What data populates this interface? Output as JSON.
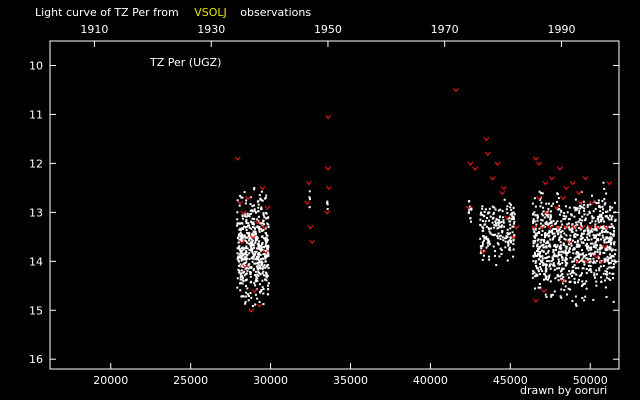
{
  "title": {
    "prefix": "Light curve of TZ Per from",
    "source": "VSOLJ",
    "suffix": "observations",
    "source_color": "#e8e800"
  },
  "credit": {
    "text": "drawn by ooruri",
    "color": "#20b0c0"
  },
  "chart_data": {
    "type": "scatter",
    "subtitle": "TZ Per (UGZ)",
    "xlim": [
      16200,
      51800
    ],
    "ylim": [
      16.2,
      9.5
    ],
    "y_inverted": true,
    "x_ticks": [
      20000,
      25000,
      30000,
      35000,
      40000,
      45000,
      50000
    ],
    "x_ticks_top": [
      {
        "label": "1910",
        "jd": 18980
      },
      {
        "label": "1930",
        "jd": 26290
      },
      {
        "label": "1950",
        "jd": 33590
      },
      {
        "label": "1970",
        "jd": 40890
      },
      {
        "label": "1990",
        "jd": 48200
      }
    ],
    "y_ticks": [
      10,
      11,
      12,
      13,
      14,
      15,
      16
    ],
    "series": [
      {
        "color": "#ffffff",
        "marker": "dot",
        "clusters": [
          {
            "x": [
              27900,
              29900
            ],
            "y": [
              12.3,
              15.2
            ],
            "count": 520
          },
          {
            "x": [
              32400,
              32500
            ],
            "y": [
              12.5,
              13.0
            ],
            "count": 4
          },
          {
            "x": [
              33500,
              33600
            ],
            "y": [
              12.6,
              13.0
            ],
            "count": 4
          },
          {
            "x": [
              42400,
              42600
            ],
            "y": [
              12.6,
              13.3
            ],
            "count": 14
          },
          {
            "x": [
              43100,
              45300
            ],
            "y": [
              12.4,
              14.2
            ],
            "count": 190
          },
          {
            "x": [
              46400,
              51600
            ],
            "y": [
              12.2,
              15.1
            ],
            "count": 900
          }
        ]
      },
      {
        "color": "#e01818",
        "marker": "v",
        "points": [
          [
            27950,
            11.9
          ],
          [
            28100,
            12.8
          ],
          [
            28300,
            13.0
          ],
          [
            28600,
            12.7
          ],
          [
            28900,
            13.5
          ],
          [
            29200,
            13.2
          ],
          [
            29500,
            12.5
          ],
          [
            29700,
            13.8
          ],
          [
            28400,
            14.1
          ],
          [
            29000,
            14.6
          ],
          [
            28800,
            15.0
          ],
          [
            29300,
            14.9
          ],
          [
            28200,
            13.6
          ],
          [
            29600,
            13.3
          ],
          [
            29800,
            12.9
          ],
          [
            32400,
            12.4
          ],
          [
            32500,
            13.3
          ],
          [
            32600,
            13.6
          ],
          [
            32300,
            12.8
          ],
          [
            33600,
            11.05
          ],
          [
            33600,
            12.1
          ],
          [
            33650,
            12.5
          ],
          [
            33550,
            13.0
          ],
          [
            41600,
            10.5
          ],
          [
            42500,
            12.0
          ],
          [
            42800,
            12.1
          ],
          [
            42400,
            12.9
          ],
          [
            43500,
            11.5
          ],
          [
            43600,
            11.8
          ],
          [
            43900,
            12.3
          ],
          [
            44200,
            12.0
          ],
          [
            44500,
            12.6
          ],
          [
            44800,
            13.1
          ],
          [
            43300,
            13.8
          ],
          [
            45400,
            13.3
          ],
          [
            45200,
            13.5
          ],
          [
            44600,
            12.5
          ],
          [
            46600,
            11.9
          ],
          [
            46800,
            12.0
          ],
          [
            47200,
            12.4
          ],
          [
            47600,
            12.3
          ],
          [
            48100,
            12.1
          ],
          [
            48500,
            12.5
          ],
          [
            48900,
            12.4
          ],
          [
            49300,
            12.6
          ],
          [
            49700,
            12.3
          ],
          [
            50100,
            12.8
          ],
          [
            46500,
            13.3
          ],
          [
            47000,
            13.3
          ],
          [
            47500,
            13.3
          ],
          [
            48000,
            13.3
          ],
          [
            48500,
            13.3
          ],
          [
            49000,
            13.3
          ],
          [
            49500,
            13.3
          ],
          [
            50000,
            13.3
          ],
          [
            50500,
            13.3
          ],
          [
            51000,
            13.3
          ],
          [
            47300,
            13.0
          ],
          [
            47900,
            12.9
          ],
          [
            48700,
            13.6
          ],
          [
            49200,
            14.0
          ],
          [
            49800,
            14.0
          ],
          [
            50400,
            13.9
          ],
          [
            50900,
            13.7
          ],
          [
            46600,
            14.8
          ],
          [
            47100,
            14.6
          ],
          [
            48300,
            14.4
          ],
          [
            46800,
            12.7
          ],
          [
            48300,
            12.7
          ],
          [
            49400,
            12.8
          ],
          [
            51200,
            12.4
          ],
          [
            50700,
            14.0
          ]
        ]
      }
    ]
  }
}
